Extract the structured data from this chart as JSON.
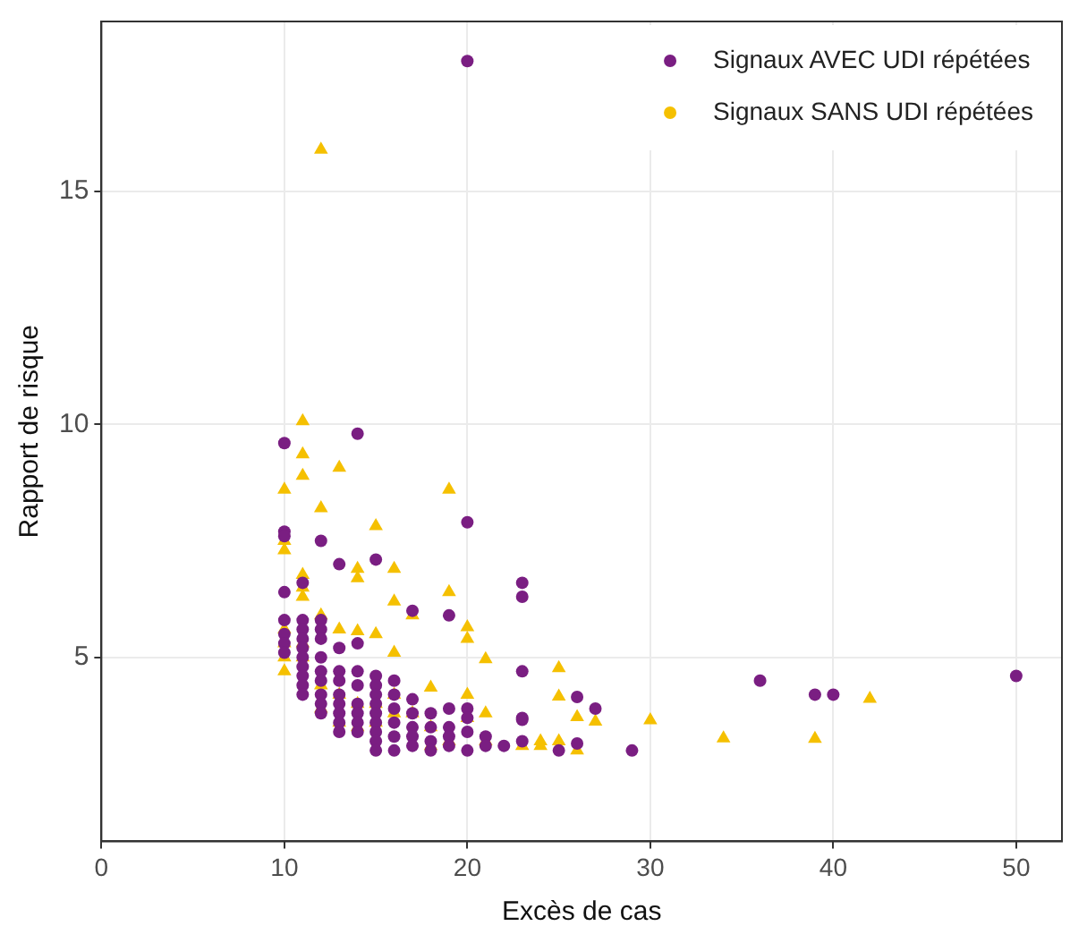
{
  "chart_data": {
    "type": "scatter",
    "xlabel": "Excès de cas",
    "ylabel": "Rapport de risque",
    "xlim": [
      0,
      52.5
    ],
    "xticks": [
      0,
      10,
      20,
      30,
      40,
      50
    ],
    "ylim": [
      1.05,
      18.65
    ],
    "yticks": [
      5,
      10,
      15
    ],
    "grid": true,
    "legend": "top right",
    "series": [
      {
        "name": "Signaux AVEC UDI répétées",
        "color": "#7a1e82",
        "marker": "circle",
        "x": [
          10,
          10,
          10,
          10,
          10,
          10,
          10,
          10,
          11,
          11,
          11,
          11,
          11,
          11,
          11,
          11,
          11,
          11,
          12,
          12,
          12,
          12,
          12,
          12,
          12,
          12,
          12,
          12,
          13,
          13,
          13,
          13,
          13,
          13,
          13,
          13,
          13,
          14,
          14,
          14,
          14,
          14,
          14,
          14,
          14,
          15,
          15,
          15,
          15,
          15,
          15,
          15,
          15,
          15,
          15,
          16,
          16,
          16,
          16,
          16,
          16,
          17,
          17,
          17,
          17,
          17,
          17,
          18,
          18,
          18,
          18,
          19,
          19,
          19,
          19,
          19,
          20,
          20,
          20,
          20,
          20,
          20,
          21,
          21,
          22,
          23,
          23,
          23,
          23,
          23,
          23,
          25,
          26,
          26,
          27,
          29,
          36,
          39,
          40,
          50
        ],
        "values": [
          9.6,
          7.7,
          7.6,
          6.4,
          5.8,
          5.5,
          5.3,
          5.1,
          6.6,
          5.8,
          5.6,
          5.4,
          5.2,
          5.0,
          4.8,
          4.6,
          4.4,
          4.2,
          7.5,
          5.8,
          5.6,
          5.4,
          5.0,
          4.7,
          4.5,
          4.2,
          4.0,
          3.8,
          7.0,
          5.2,
          4.7,
          4.5,
          4.2,
          4.0,
          3.8,
          3.6,
          3.4,
          9.8,
          5.3,
          4.7,
          4.4,
          4.0,
          3.8,
          3.6,
          3.4,
          7.1,
          4.6,
          4.4,
          4.2,
          4.0,
          3.8,
          3.6,
          3.4,
          3.2,
          3.0,
          4.5,
          4.2,
          3.9,
          3.6,
          3.3,
          3.0,
          6.0,
          4.1,
          3.8,
          3.5,
          3.3,
          3.1,
          3.8,
          3.5,
          3.2,
          3.0,
          5.9,
          3.9,
          3.5,
          3.3,
          3.1,
          17.8,
          7.9,
          3.9,
          3.7,
          3.4,
          3.0,
          3.3,
          3.1,
          3.1,
          6.6,
          6.3,
          4.7,
          3.7,
          3.66,
          3.2,
          3.0,
          4.15,
          3.15,
          3.9,
          3.0,
          4.5,
          4.2,
          4.2,
          4.6
        ]
      },
      {
        "name": "Signaux SANS UDI répétées",
        "color": "#f5c000",
        "marker": "triangle",
        "x": [
          10,
          10,
          10,
          10,
          10,
          10,
          10,
          11,
          11,
          11,
          11,
          11,
          11,
          11,
          11,
          12,
          12,
          12,
          12,
          12,
          13,
          13,
          13,
          13,
          14,
          14,
          14,
          14,
          14,
          15,
          15,
          15,
          15,
          16,
          16,
          16,
          16,
          16,
          17,
          17,
          18,
          18,
          18,
          19,
          19,
          19,
          20,
          20,
          20,
          20,
          21,
          21,
          21,
          23,
          24,
          24,
          25,
          25,
          25,
          26,
          26,
          27,
          30,
          34,
          39,
          42
        ],
        "values": [
          8.6,
          7.5,
          7.3,
          5.6,
          5.3,
          5.0,
          4.7,
          10.07,
          9.36,
          8.9,
          6.77,
          6.5,
          6.3,
          5.3,
          5.0,
          15.9,
          8.2,
          5.9,
          4.4,
          3.9,
          9.07,
          5.6,
          4.2,
          3.6,
          6.9,
          6.7,
          5.56,
          4.0,
          3.5,
          7.82,
          5.5,
          4.0,
          3.6,
          6.9,
          6.2,
          5.1,
          4.2,
          3.8,
          5.9,
          3.8,
          4.35,
          3.5,
          3.1,
          8.6,
          6.4,
          3.2,
          5.65,
          5.4,
          4.2,
          3.7,
          4.96,
          3.8,
          3.2,
          3.1,
          3.2,
          3.1,
          4.77,
          4.16,
          3.2,
          3.72,
          3.0,
          3.62,
          3.65,
          3.26,
          3.25,
          4.11
        ]
      }
    ]
  }
}
